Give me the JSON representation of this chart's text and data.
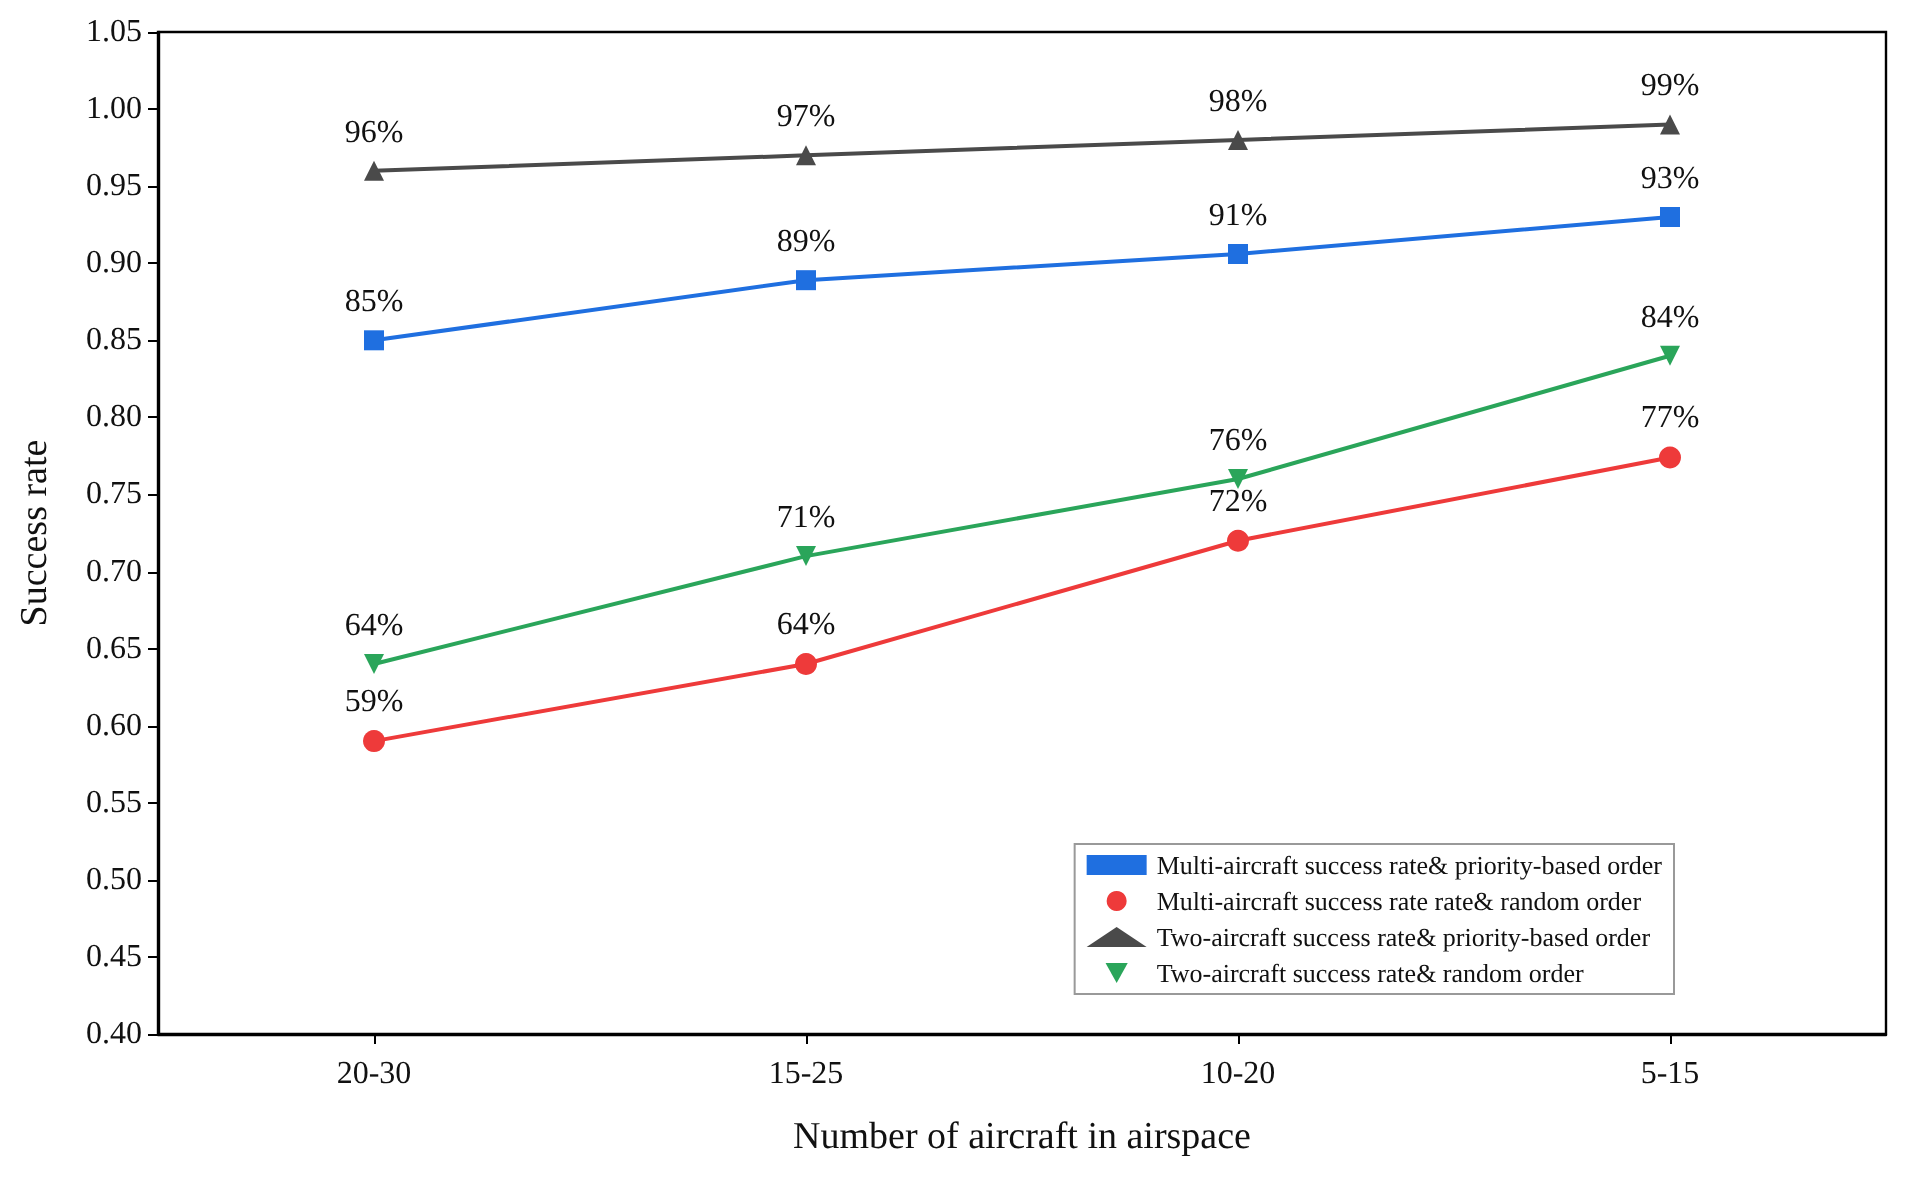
{
  "chart_data": {
    "type": "line",
    "xlabel": "Number of aircraft in airspace",
    "ylabel": "Success rate",
    "categories": [
      "20-30",
      "15-25",
      "10-20",
      "5-15"
    ],
    "ylim": [
      0.4,
      1.05
    ],
    "yticks": [
      {
        "value": 0.4,
        "label": "0.40"
      },
      {
        "value": 0.45,
        "label": "0.45"
      },
      {
        "value": 0.5,
        "label": "0.50"
      },
      {
        "value": 0.55,
        "label": "0.55"
      },
      {
        "value": 0.6,
        "label": "0.60"
      },
      {
        "value": 0.65,
        "label": "0.65"
      },
      {
        "value": 0.7,
        "label": "0.70"
      },
      {
        "value": 0.75,
        "label": "0.75"
      },
      {
        "value": 0.8,
        "label": "0.80"
      },
      {
        "value": 0.85,
        "label": "0.85"
      },
      {
        "value": 0.9,
        "label": "0.90"
      },
      {
        "value": 0.95,
        "label": "0.95"
      },
      {
        "value": 1.0,
        "label": "1.00"
      },
      {
        "value": 1.05,
        "label": "1.05"
      }
    ],
    "grid": false,
    "legend": "bottom right",
    "line_style": "solid",
    "series": [
      {
        "name": "Multi-aircraft success rate& priority-based order",
        "color": "#1f6fe0",
        "marker": "square",
        "values": [
          0.85,
          0.889,
          0.906,
          0.93
        ],
        "value_labels": [
          "85%",
          "89%",
          "91%",
          "93%"
        ]
      },
      {
        "name": "Multi-aircraft success rate rate& random order",
        "color": "#ee3a3a",
        "marker": "circle",
        "values": [
          0.59,
          0.64,
          0.72,
          0.774
        ],
        "value_labels": [
          "59%",
          "64%",
          "72%",
          "77%"
        ]
      },
      {
        "name": "Two-aircraft success rate& priority-based order",
        "color": "#4a4a4a",
        "marker": "triangle",
        "values": [
          0.96,
          0.97,
          0.98,
          0.99
        ],
        "value_labels": [
          "96%",
          "97%",
          "98%",
          "99%"
        ]
      },
      {
        "name": "Two-aircraft success rate& random order",
        "color": "#2aa55a",
        "marker": "triangle-down",
        "values": [
          0.64,
          0.71,
          0.76,
          0.84
        ],
        "value_labels": [
          "64%",
          "71%",
          "76%",
          "84%"
        ]
      }
    ]
  }
}
